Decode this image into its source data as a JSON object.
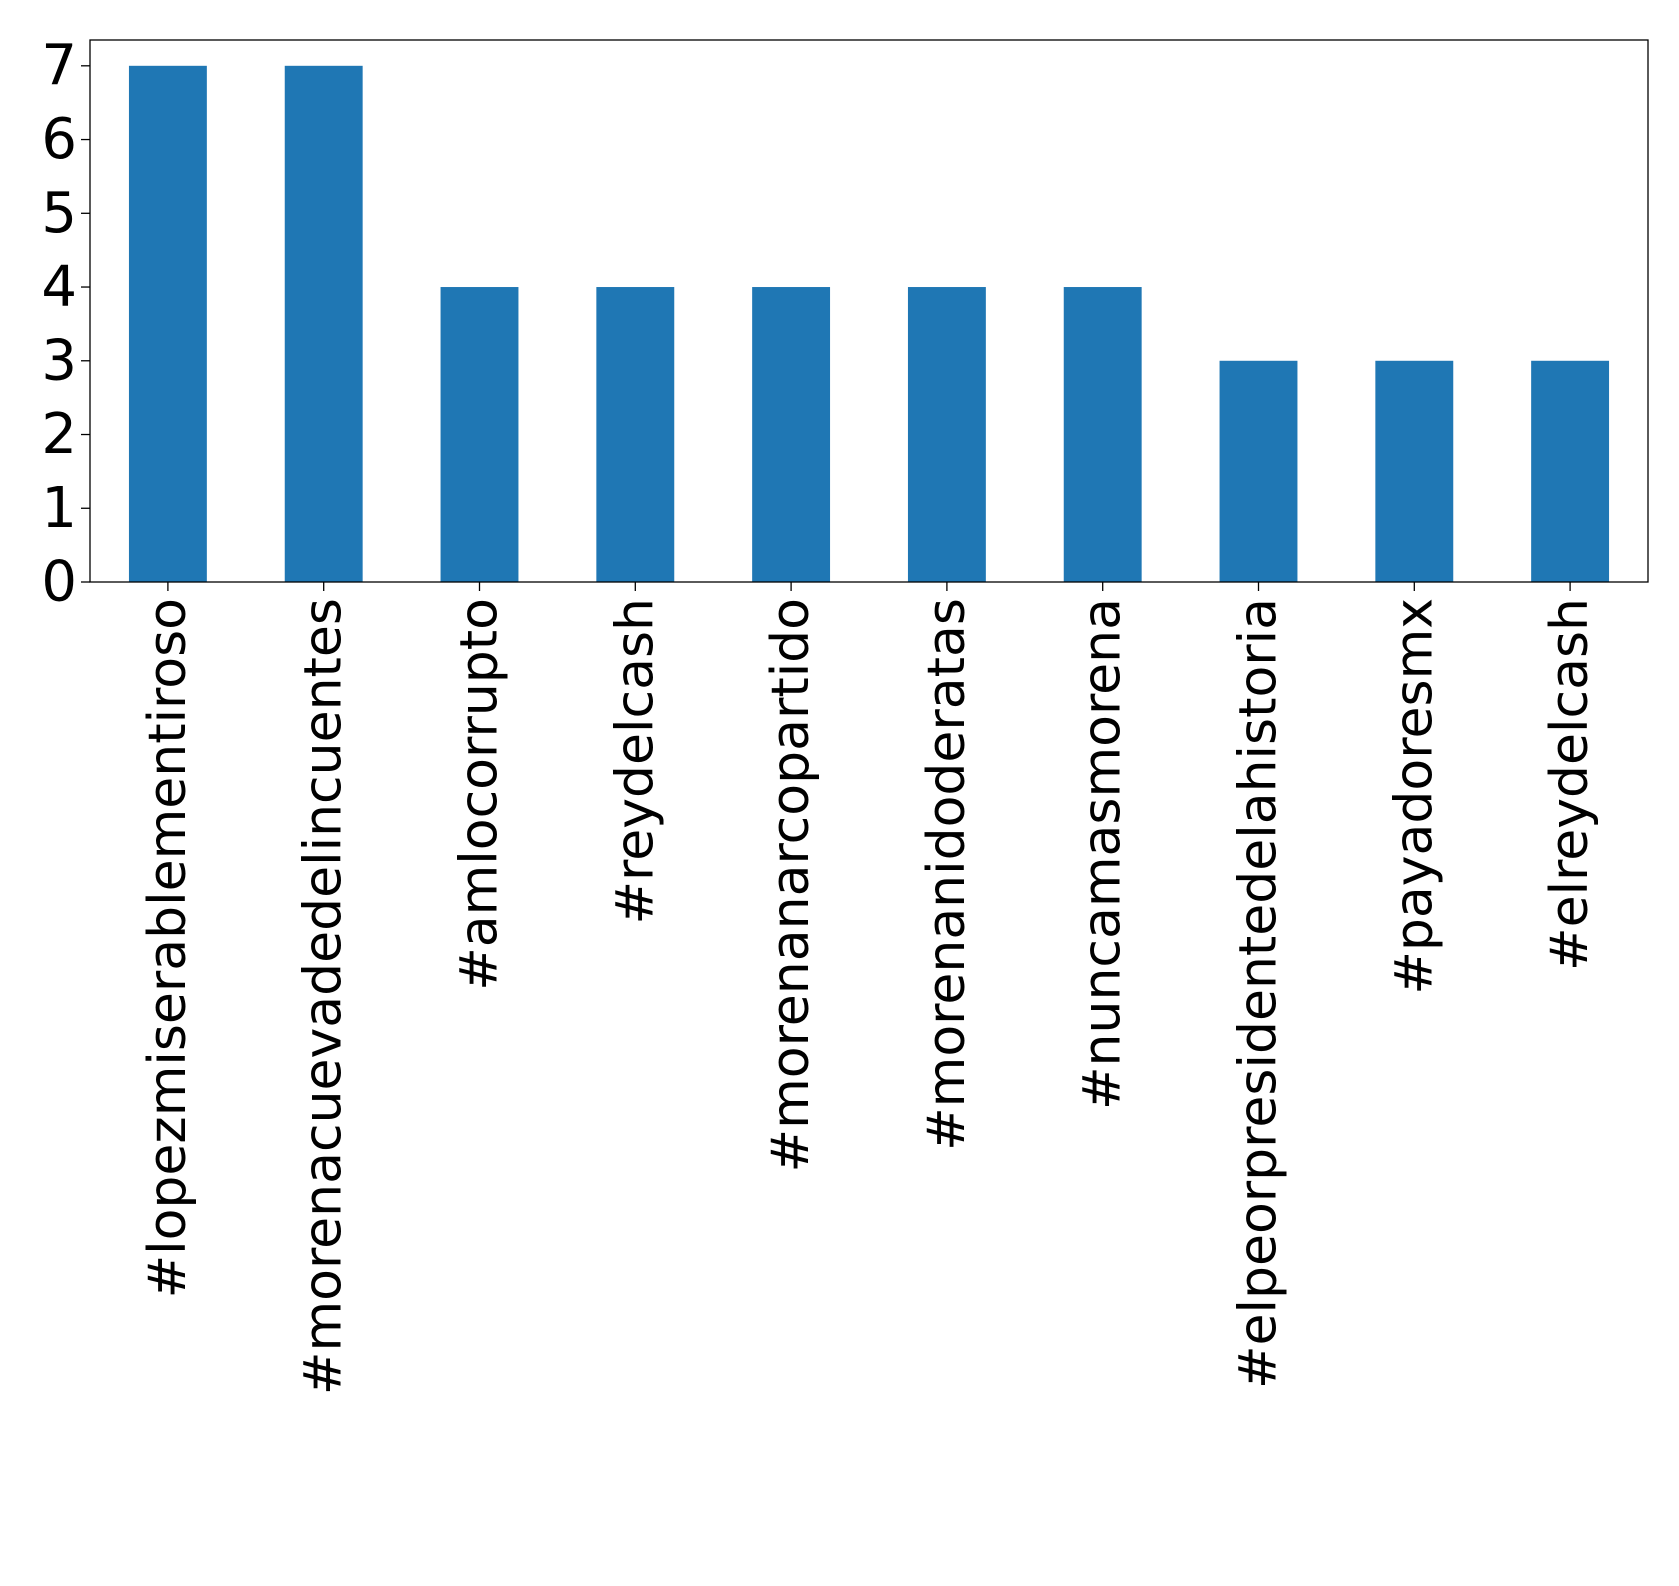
{
  "chart_data": {
    "type": "bar",
    "title": "",
    "xlabel": "",
    "ylabel": "",
    "categories": [
      "#lopezmiserablementiroso",
      "#morenacuevadedelincuentes",
      "#amlocorrupto",
      "#reydelcash",
      "#morenanarcopartido",
      "#morenanidoderatas",
      "#nuncamasmorena",
      "#elpeorpresidentedelahistoria",
      "#payadoresmx",
      "#elreydelcash"
    ],
    "values": [
      7,
      7,
      4,
      4,
      4,
      4,
      4,
      3,
      3,
      3
    ],
    "ylim": [
      0,
      7.35
    ],
    "yticks": [
      "0",
      "1",
      "2",
      "3",
      "4",
      "5",
      "6",
      "7"
    ],
    "bar_color": "#1f77b4",
    "grid": false,
    "legend": "none"
  }
}
